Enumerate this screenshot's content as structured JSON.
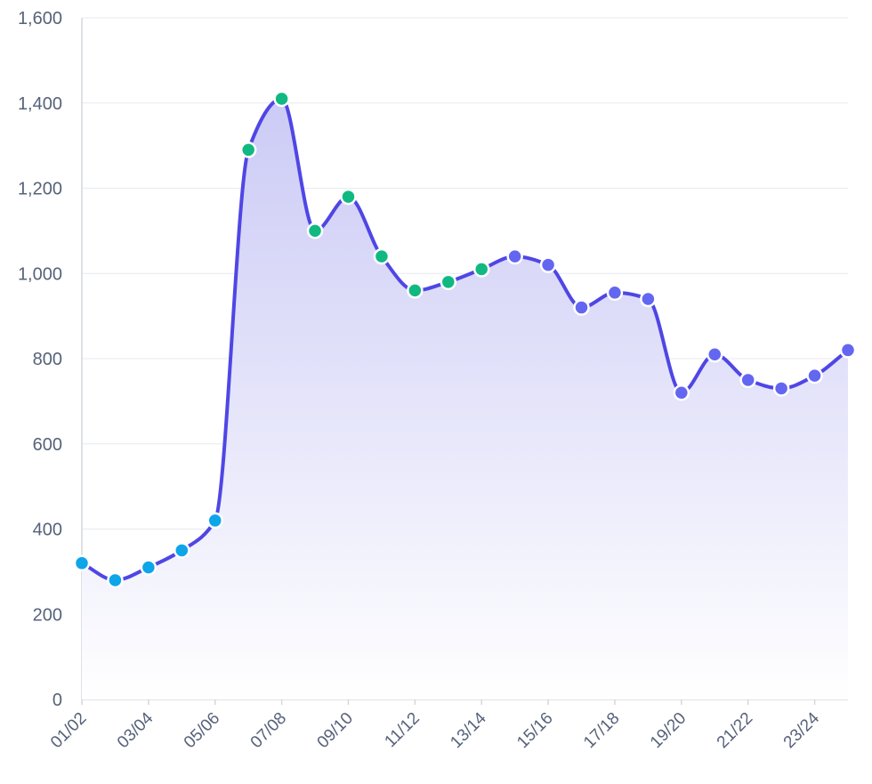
{
  "chart_data": {
    "type": "area",
    "title": "",
    "xlabel": "",
    "ylabel": "",
    "ylim": [
      0,
      1600
    ],
    "y_ticks": [
      "0",
      "200",
      "400",
      "600",
      "800",
      "1,000",
      "1,200",
      "1,400",
      "1,600"
    ],
    "x_tick_labels": [
      "01/02",
      "03/04",
      "05/06",
      "07/08",
      "09/10",
      "11/12",
      "13/14",
      "15/16",
      "17/18",
      "19/20",
      "21/22",
      "23/24"
    ],
    "grid": true,
    "smooth": true,
    "colors": {
      "line": "#4f46e5",
      "fill_top": "#c9c8f5",
      "fill_bottom": "#ffffff",
      "grid": "#e8eaf0",
      "axis": "#d4d7de",
      "tick_text": "#56627a",
      "marker_stroke": "#ffffff"
    },
    "series": [
      {
        "values": [
          320,
          280,
          310,
          350,
          420,
          1290,
          1410,
          1100,
          1180,
          1040,
          960,
          980,
          1010,
          1040,
          1020,
          920,
          955,
          940,
          720,
          810,
          750,
          730,
          760,
          820
        ],
        "point_colors": [
          "#0ea5e9",
          "#0ea5e9",
          "#0ea5e9",
          "#0ea5e9",
          "#0ea5e9",
          "#10b981",
          "#10b981",
          "#10b981",
          "#10b981",
          "#10b981",
          "#10b981",
          "#10b981",
          "#10b981",
          "#6366f1",
          "#6366f1",
          "#6366f1",
          "#6366f1",
          "#6366f1",
          "#6366f1",
          "#6366f1",
          "#6366f1",
          "#6366f1",
          "#6366f1",
          "#6366f1"
        ]
      }
    ]
  }
}
